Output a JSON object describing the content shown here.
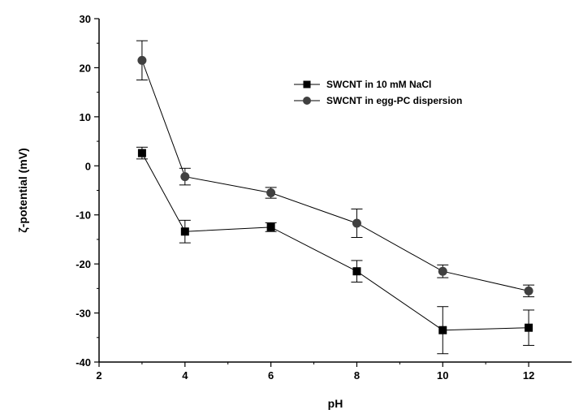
{
  "chart_data": {
    "type": "line",
    "xlabel": "pH",
    "ylabel": "ζ-potential (mV)",
    "xlim": [
      2,
      13
    ],
    "ylim": [
      -40,
      30
    ],
    "xticks": [
      2,
      4,
      6,
      8,
      10,
      12
    ],
    "yticks": [
      30,
      20,
      10,
      0,
      -10,
      -20,
      -30,
      -40
    ],
    "grid": false,
    "legend_position": "top-right",
    "series": [
      {
        "name": "SWCNT in 10 mM NaCl",
        "marker": "square",
        "color": "#000000",
        "points": [
          {
            "x": 3,
            "y": 2.6,
            "err": 1.2
          },
          {
            "x": 4,
            "y": -13.4,
            "err": 2.3
          },
          {
            "x": 6,
            "y": -12.5,
            "err": 0.9
          },
          {
            "x": 8,
            "y": -21.5,
            "err": 2.2
          },
          {
            "x": 10,
            "y": -33.5,
            "err": 4.8
          },
          {
            "x": 12,
            "y": -33.0,
            "err": 3.6
          }
        ]
      },
      {
        "name": "SWCNT in egg-PC dispersion",
        "marker": "circle",
        "color": "#404040",
        "points": [
          {
            "x": 3,
            "y": 21.5,
            "err": 4.0
          },
          {
            "x": 4,
            "y": -2.2,
            "err": 1.7
          },
          {
            "x": 6,
            "y": -5.5,
            "err": 1.1
          },
          {
            "x": 8,
            "y": -11.7,
            "err": 2.9
          },
          {
            "x": 10,
            "y": -21.5,
            "err": 1.3
          },
          {
            "x": 12,
            "y": -25.5,
            "err": 1.2
          }
        ]
      }
    ]
  }
}
